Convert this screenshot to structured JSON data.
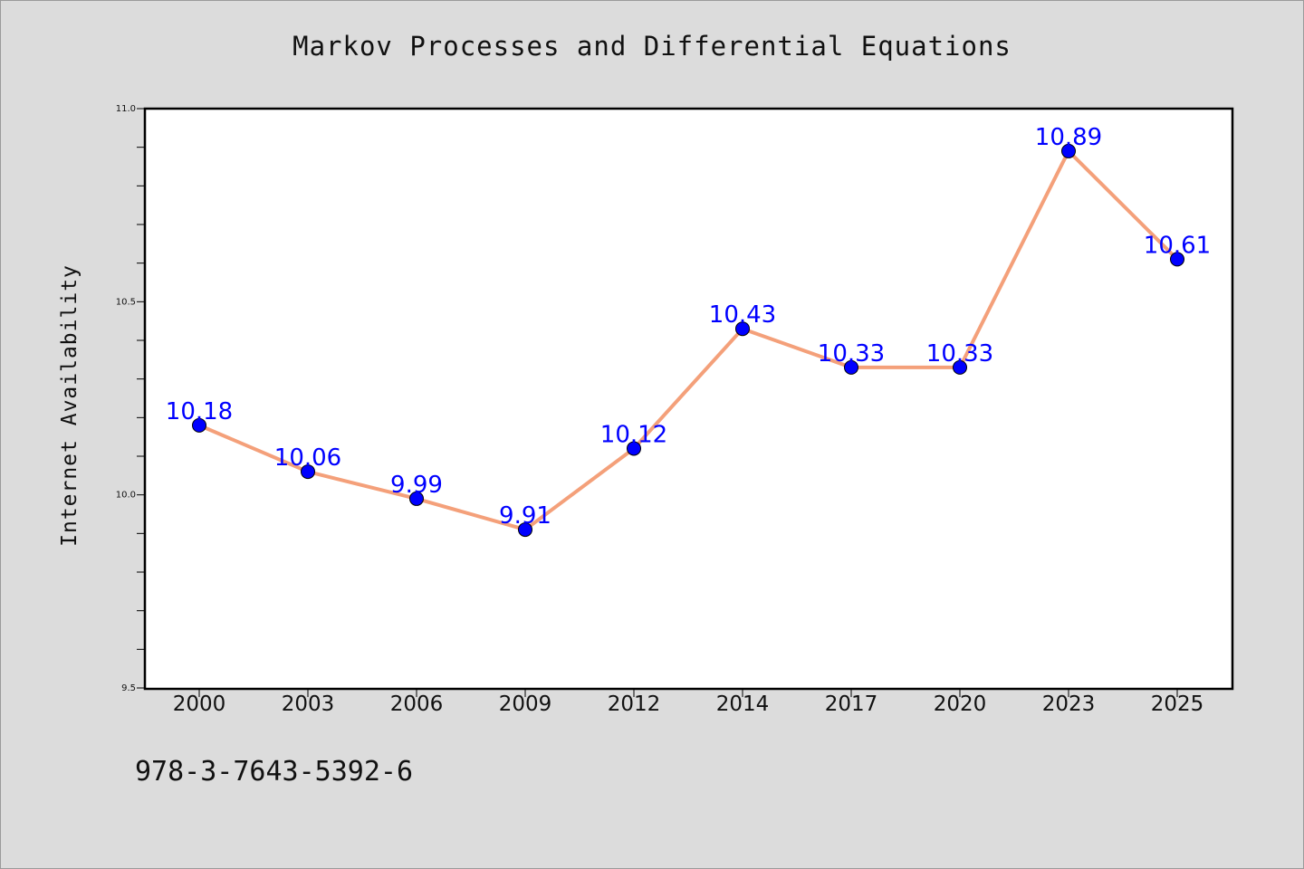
{
  "chart_data": {
    "type": "line",
    "title": "Markov Processes and Differential Equations",
    "xlabel": "",
    "ylabel": "Internet Availability",
    "categories": [
      "2000",
      "2003",
      "2006",
      "2009",
      "2012",
      "2014",
      "2017",
      "2020",
      "2023",
      "2025"
    ],
    "series": [
      {
        "values": [
          10.18,
          10.06,
          9.99,
          9.91,
          10.12,
          10.43,
          10.33,
          10.33,
          10.89,
          10.61
        ]
      }
    ],
    "data_labels": [
      "10.18",
      "10.06",
      "9.99",
      "9.91",
      "10.12",
      "10.43",
      "10.33",
      "10.33",
      "10.89",
      "10.61"
    ],
    "ylim": [
      9.5,
      11.0
    ],
    "yticks": [
      "9.5",
      "10.0",
      "10.5",
      "11.0"
    ],
    "grid": false,
    "line_color": "#f4a07a",
    "marker_color": "#0000ff",
    "label_color": "#0000ff",
    "background_color": "#dcdcdc"
  },
  "footer_text": "978-3-7643-5392-6"
}
